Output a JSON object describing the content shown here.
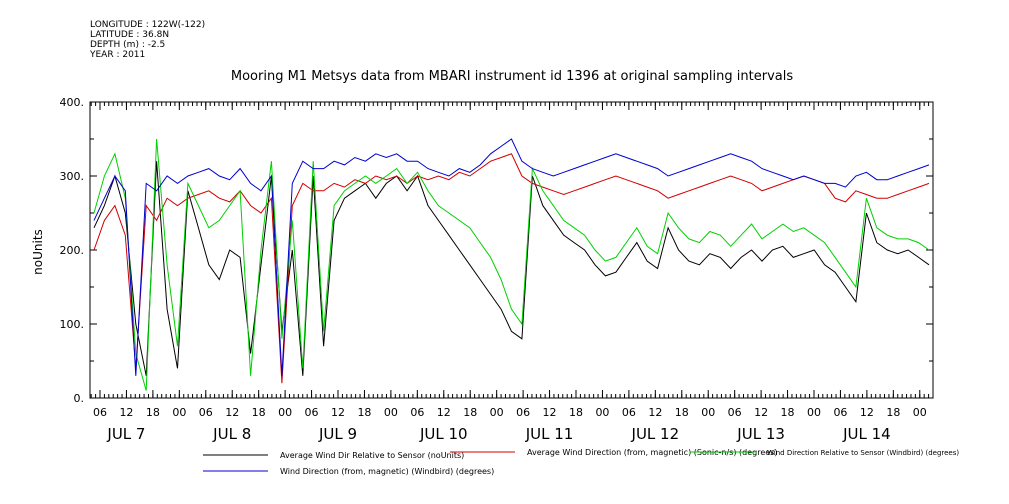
{
  "meta_lines": [
    "LONGITUDE : 122W(-122)",
    "LATITUDE : 36.8N",
    "DEPTH (m) : -2.5",
    "YEAR : 2011"
  ],
  "chart_data": {
    "type": "line",
    "title": "Mooring M1 Metsys data from MBARI instrument id 1396 at original sampling intervals",
    "ylabel": "noUnits",
    "xlabel": "",
    "ylim": [
      0,
      400
    ],
    "yticks": [
      "0.",
      "100.",
      "200.",
      "300.",
      "400."
    ],
    "x_hour_labels": [
      "06",
      "12",
      "18",
      "00",
      "06",
      "12",
      "18",
      "00",
      "06",
      "12",
      "18",
      "00",
      "06",
      "12",
      "18",
      "00",
      "06",
      "12",
      "18",
      "00",
      "06",
      "12",
      "18",
      "00",
      "06",
      "12",
      "18",
      "00",
      "06",
      "12",
      "18",
      "00"
    ],
    "x_day_labels": [
      "JUL  7",
      "JUL  8",
      "JUL  9",
      "JUL 10",
      "JUL 11",
      "JUL 12",
      "JUL 13",
      "JUL 14"
    ],
    "grid": false,
    "series": [
      {
        "name": "Average Wind Dir Relative to Sensor (noUnits)",
        "color": "#000000",
        "values": [
          230,
          260,
          300,
          250,
          100,
          30,
          320,
          120,
          40,
          280,
          230,
          180,
          160,
          200,
          190,
          60,
          180,
          300,
          90,
          200,
          30,
          300,
          70,
          240,
          270,
          280,
          290,
          270,
          290,
          300,
          280,
          300,
          260,
          240,
          220,
          200,
          180,
          160,
          140,
          120,
          90,
          80,
          300,
          260,
          240,
          220,
          210,
          200,
          180,
          165,
          170,
          190,
          210,
          185,
          175,
          230,
          200,
          185,
          180,
          195,
          190,
          175,
          190,
          200,
          185,
          200,
          205,
          190,
          195,
          200,
          180,
          170,
          150,
          130,
          250,
          210,
          200,
          195,
          200,
          190,
          180
        ]
      },
      {
        "name": "Average Wind Direction (from, magnetic) (Sonic-n/s) (degrees)",
        "color": "#d00000",
        "values": [
          200,
          240,
          260,
          220,
          40,
          260,
          240,
          270,
          260,
          270,
          275,
          280,
          270,
          265,
          280,
          260,
          250,
          270,
          20,
          260,
          290,
          280,
          280,
          290,
          285,
          295,
          290,
          300,
          295,
          300,
          290,
          300,
          295,
          300,
          295,
          305,
          300,
          310,
          320,
          325,
          330,
          300,
          290,
          285,
          280,
          275,
          280,
          285,
          290,
          295,
          300,
          295,
          290,
          285,
          280,
          270,
          275,
          280,
          285,
          290,
          295,
          300,
          295,
          290,
          280,
          285,
          290,
          295,
          300,
          295,
          290,
          270,
          265,
          280,
          275,
          270,
          270,
          275,
          280,
          285,
          290
        ]
      },
      {
        "name": "Wind Direction Relative to Sensor (Windbird) (degrees)",
        "color": "#00d000",
        "values": [
          250,
          300,
          330,
          270,
          60,
          10,
          350,
          180,
          70,
          290,
          260,
          230,
          240,
          260,
          280,
          30,
          200,
          320,
          80,
          240,
          40,
          320,
          90,
          260,
          280,
          290,
          300,
          290,
          300,
          310,
          290,
          305,
          280,
          260,
          250,
          240,
          230,
          210,
          190,
          160,
          120,
          100,
          310,
          280,
          260,
          240,
          230,
          220,
          200,
          185,
          190,
          210,
          230,
          205,
          195,
          250,
          230,
          215,
          210,
          225,
          220,
          205,
          220,
          235,
          215,
          225,
          235,
          225,
          230,
          220,
          210,
          190,
          170,
          150,
          270,
          230,
          220,
          215,
          215,
          210,
          200
        ]
      },
      {
        "name": "Wind Direction (from, magnetic) (Windbird) (degrees)",
        "color": "#0000d0",
        "values": [
          240,
          270,
          300,
          280,
          30,
          290,
          280,
          300,
          290,
          300,
          305,
          310,
          300,
          295,
          310,
          290,
          280,
          300,
          30,
          290,
          320,
          310,
          310,
          320,
          315,
          325,
          320,
          330,
          325,
          330,
          320,
          320,
          310,
          305,
          300,
          310,
          305,
          315,
          330,
          340,
          350,
          320,
          310,
          305,
          300,
          305,
          310,
          315,
          320,
          325,
          330,
          325,
          320,
          315,
          310,
          300,
          305,
          310,
          315,
          320,
          325,
          330,
          325,
          320,
          310,
          305,
          300,
          295,
          300,
          295,
          290,
          290,
          285,
          300,
          305,
          295,
          295,
          300,
          305,
          310,
          315
        ]
      }
    ]
  }
}
